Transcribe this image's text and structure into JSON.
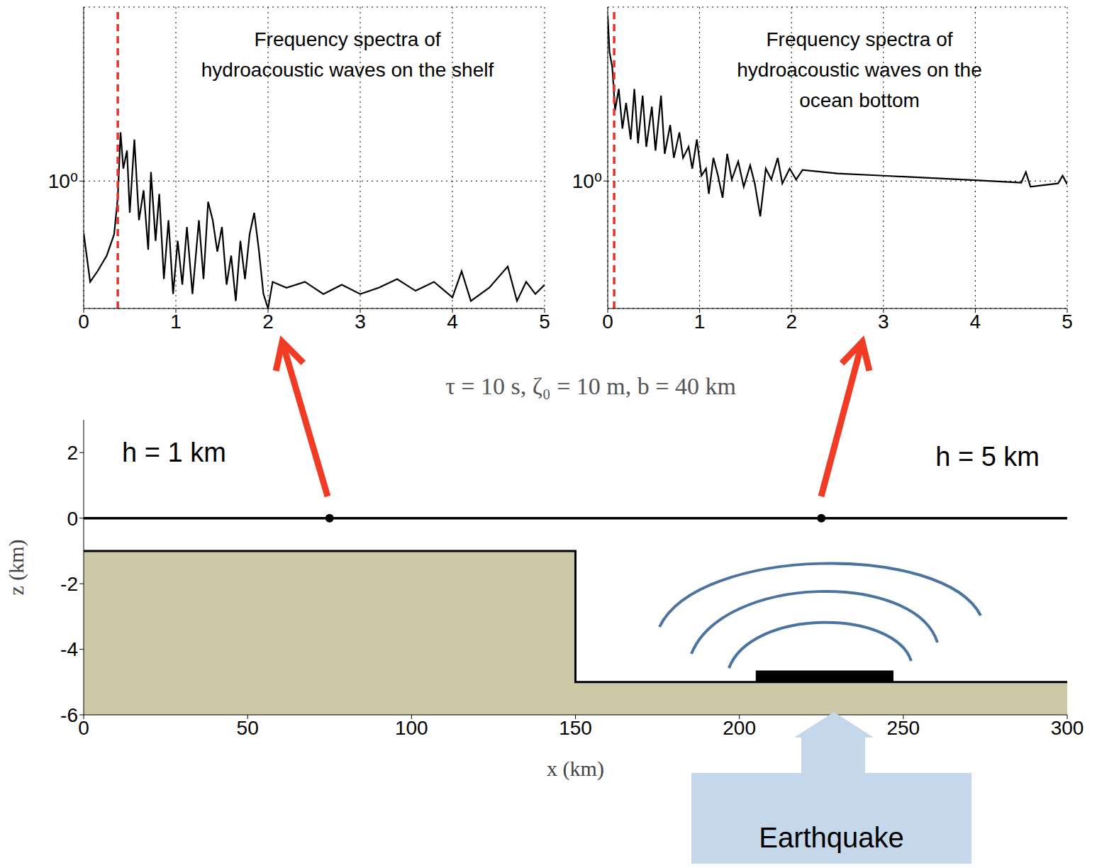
{
  "chart_data": [
    {
      "type": "line",
      "title": "Frequency spectra of hydroacoustic waves on the shelf",
      "color": "#000000",
      "x": [
        0,
        0.07,
        0.15,
        0.25,
        0.33,
        0.37,
        0.4,
        0.43,
        0.47,
        0.5,
        0.55,
        0.6,
        0.65,
        0.7,
        0.73,
        0.78,
        0.82,
        0.87,
        0.92,
        0.97,
        1.02,
        1.07,
        1.12,
        1.18,
        1.25,
        1.3,
        1.35,
        1.4,
        1.45,
        1.5,
        1.55,
        1.6,
        1.65,
        1.7,
        1.75,
        1.8,
        1.85,
        1.9,
        1.95,
        2.0,
        2.05,
        2.2,
        2.4,
        2.6,
        2.8,
        3.0,
        3.2,
        3.4,
        3.6,
        3.8,
        4.0,
        4.1,
        4.2,
        4.4,
        4.6,
        4.7,
        4.8,
        4.9,
        5.0
      ],
      "values": [
        0.52,
        0.28,
        0.32,
        0.39,
        0.51,
        0.81,
        1.85,
        1.17,
        1.47,
        0.67,
        1.69,
        0.61,
        0.89,
        0.42,
        1.12,
        0.47,
        0.85,
        0.29,
        0.61,
        0.24,
        0.47,
        0.27,
        0.56,
        0.24,
        0.61,
        0.29,
        0.77,
        0.61,
        0.41,
        0.56,
        0.27,
        0.39,
        0.22,
        0.47,
        0.29,
        0.51,
        0.67,
        0.42,
        0.24,
        0.2,
        0.28,
        0.26,
        0.28,
        0.24,
        0.27,
        0.24,
        0.26,
        0.29,
        0.25,
        0.28,
        0.23,
        0.32,
        0.22,
        0.26,
        0.34,
        0.22,
        0.28,
        0.24,
        0.27
      ],
      "xlim": [
        0,
        5
      ],
      "ylim": [
        0.2,
        9
      ],
      "xticks": [
        0,
        1,
        2,
        3,
        4,
        5
      ],
      "yticks": [
        {
          "value": 1,
          "label": "10⁰"
        }
      ],
      "log": "y",
      "grid": true,
      "reference_line": {
        "x": 0.37,
        "color": "#e8312a",
        "line_style": "dashed"
      }
    },
    {
      "type": "line",
      "title": "Frequency spectra of hydroacoustic waves on the ocean bottom",
      "color": "#000000",
      "x": [
        0,
        0.02,
        0.05,
        0.08,
        0.12,
        0.16,
        0.2,
        0.25,
        0.29,
        0.33,
        0.38,
        0.42,
        0.48,
        0.52,
        0.58,
        0.62,
        0.68,
        0.72,
        0.78,
        0.82,
        0.88,
        0.92,
        0.97,
        1.02,
        1.07,
        1.1,
        1.15,
        1.2,
        1.25,
        1.3,
        1.35,
        1.42,
        1.48,
        1.55,
        1.6,
        1.66,
        1.72,
        1.78,
        1.85,
        1.9,
        1.98,
        2.05,
        2.12,
        2.5,
        3.0,
        3.5,
        4.0,
        4.5,
        4.55,
        4.6,
        4.9,
        4.95,
        5.0
      ],
      "values": [
        8.1,
        5.1,
        4.2,
        2.44,
        3.2,
        1.94,
        2.68,
        1.69,
        3.2,
        1.61,
        2.94,
        1.54,
        2.56,
        1.47,
        2.94,
        1.41,
        2.03,
        1.34,
        1.85,
        1.34,
        1.54,
        1.17,
        1.69,
        1.07,
        1.17,
        0.85,
        1.34,
        1.07,
        0.81,
        1.41,
        1.02,
        1.28,
        0.93,
        1.22,
        0.97,
        0.64,
        1.17,
        1.02,
        1.34,
        0.97,
        1.17,
        1.02,
        1.15,
        1.1,
        1.07,
        1.04,
        1.01,
        0.98,
        1.12,
        0.93,
        0.97,
        1.07,
        0.96
      ],
      "xlim": [
        0,
        5
      ],
      "ylim": [
        0.2,
        9
      ],
      "xticks": [
        0,
        1,
        2,
        3,
        4,
        5
      ],
      "yticks": [
        {
          "value": 1,
          "label": "10⁰"
        }
      ],
      "log": "y",
      "grid": true,
      "reference_line": {
        "x": 0.07,
        "color": "#e8312a",
        "line_style": "dashed"
      }
    },
    {
      "type": "profile",
      "title": "τ = 10 s, ζ₀ = 10 m, b = 40 km",
      "xlabel": "x (km)",
      "ylabel": "z (km)",
      "xlim": [
        0,
        300
      ],
      "ylim": [
        -6,
        3
      ],
      "xticks": [
        0,
        50,
        100,
        150,
        200,
        250,
        300
      ],
      "yticks": [
        -6,
        -4,
        -2,
        0,
        2
      ],
      "grid": false,
      "series": [
        {
          "type": "area",
          "color": "#cdc8a6",
          "x": [
            0,
            150,
            150,
            300
          ],
          "values": [
            -1,
            -1,
            -5,
            -5
          ]
        },
        {
          "type": "line",
          "color": "#000000",
          "x": [
            0,
            300
          ],
          "values": [
            0,
            0
          ]
        },
        {
          "type": "scatter",
          "color": "#000000",
          "x": [
            75,
            225
          ],
          "values": [
            0,
            0
          ]
        },
        {
          "type": "rect",
          "color": "#000000",
          "x": [
            205,
            247
          ],
          "values": [
            -5,
            -4.65
          ]
        }
      ],
      "annotations": [
        "h = 1 km",
        "h = 5 km",
        "Earthquake"
      ]
    }
  ]
}
